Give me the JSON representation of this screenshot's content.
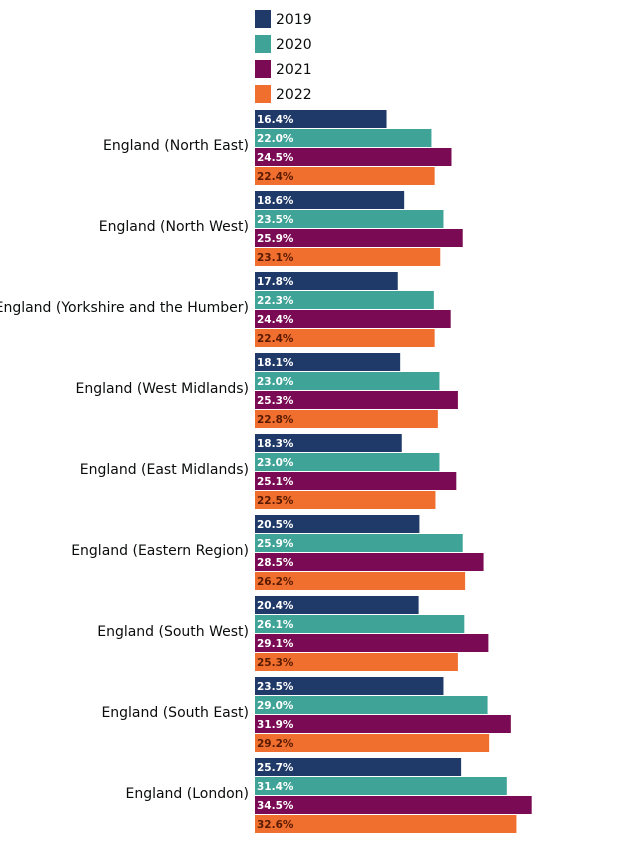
{
  "chart_data": {
    "type": "bar",
    "orientation": "horizontal",
    "categories": [
      "England (North East)",
      "England (North West)",
      "England (Yorkshire and the Humber)",
      "England (West Midlands)",
      "England (East Midlands)",
      "England (Eastern Region)",
      "England (South West)",
      "England (South East)",
      "England (London)"
    ],
    "series": [
      {
        "name": "2019",
        "color": "#1f3a68",
        "values": [
          16.4,
          18.6,
          17.8,
          18.1,
          18.3,
          20.5,
          20.4,
          23.5,
          25.7
        ],
        "labels": [
          "16.4%",
          "18.6%",
          "17.8%",
          "18.1%",
          "18.3%",
          "20.5%",
          "20.4%",
          "23.5%",
          "25.7%"
        ]
      },
      {
        "name": "2020",
        "color": "#3fa497",
        "values": [
          22.0,
          23.5,
          22.3,
          23.0,
          23.0,
          25.9,
          26.1,
          29.0,
          31.4
        ],
        "labels": [
          "22.0%",
          "23.5%",
          "22.3%",
          "23.0%",
          "23.0%",
          "25.9%",
          "26.1%",
          "29.0%",
          "31.4%"
        ]
      },
      {
        "name": "2021",
        "color": "#7a0a53",
        "values": [
          24.5,
          25.9,
          24.4,
          25.3,
          25.1,
          28.5,
          29.1,
          31.9,
          34.5
        ],
        "labels": [
          "24.5%",
          "25.9%",
          "24.4%",
          "25.3%",
          "25.1%",
          "28.5%",
          "29.1%",
          "31.9%",
          "34.5%"
        ]
      },
      {
        "name": "2022",
        "color": "#f06f2e",
        "values": [
          22.4,
          23.1,
          22.4,
          22.8,
          22.5,
          26.2,
          25.3,
          29.2,
          32.6
        ],
        "labels": [
          "22.4%",
          "23.1%",
          "22.4%",
          "22.8%",
          "22.5%",
          "26.2%",
          "25.3%",
          "29.2%",
          "32.6%"
        ]
      }
    ],
    "legend_placement": "top",
    "grid": false
  }
}
